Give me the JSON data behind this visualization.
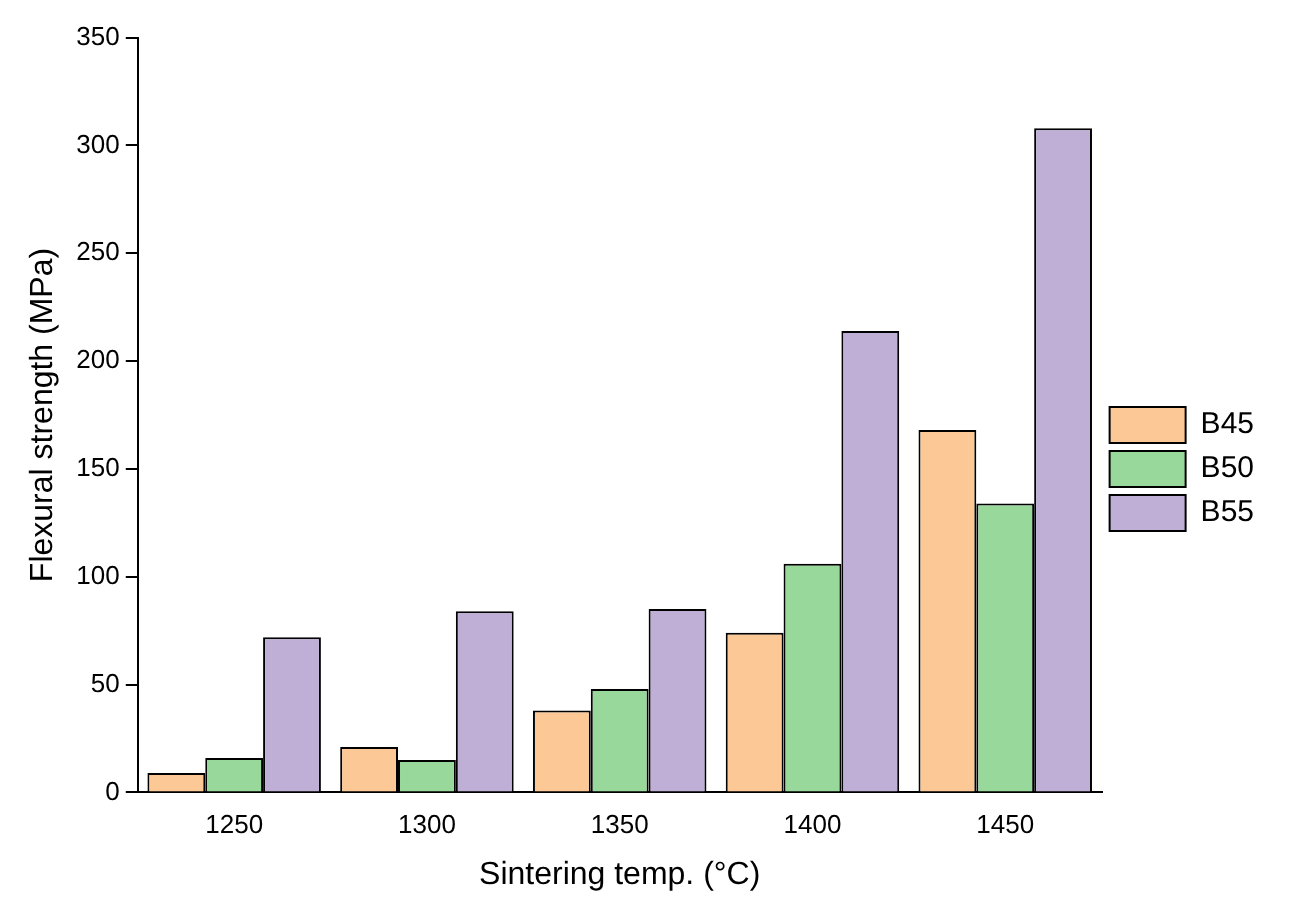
{
  "chart_data": {
    "type": "bar",
    "xlabel": "Sintering temp. (°C)",
    "ylabel": "Flexural strength (MPa)",
    "categories": [
      "1250",
      "1300",
      "1350",
      "1400",
      "1450"
    ],
    "series": [
      {
        "name": "B45",
        "color": "#fcc896",
        "values": [
          9,
          21,
          38,
          74,
          168
        ]
      },
      {
        "name": "B50",
        "color": "#99d89b",
        "values": [
          16,
          15,
          48,
          106,
          134
        ]
      },
      {
        "name": "B55",
        "color": "#bfaed6",
        "values": [
          72,
          84,
          85,
          214,
          308
        ]
      }
    ],
    "ylim": [
      0,
      350
    ],
    "yticks": [
      0,
      50,
      100,
      150,
      200,
      250,
      300,
      350
    ],
    "grid": false,
    "legend": "right"
  }
}
